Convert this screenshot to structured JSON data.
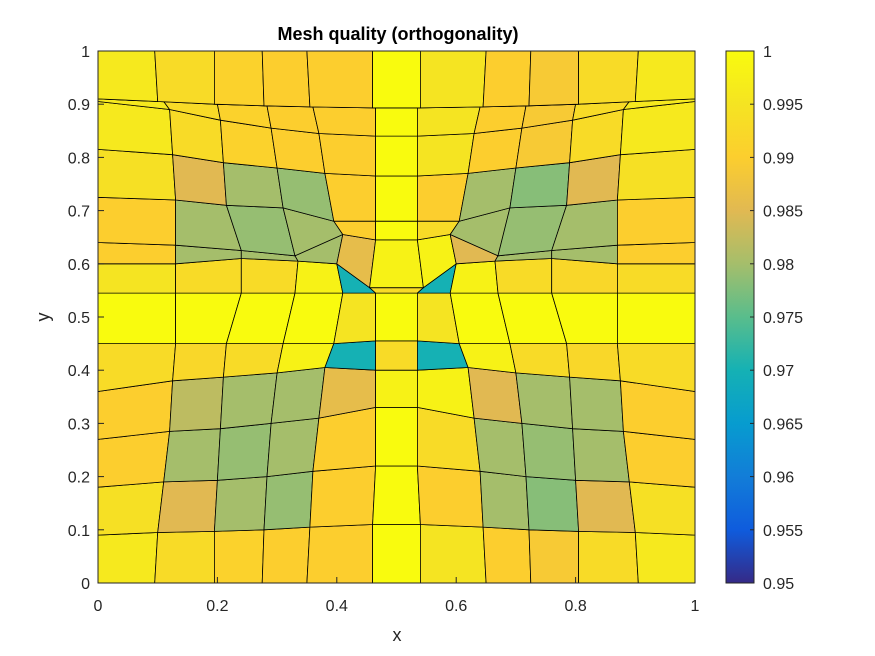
{
  "chart_data": {
    "type": "heatmap",
    "title": "Mesh quality (orthogonality)",
    "xlabel": "x",
    "ylabel": "y",
    "xlim": [
      0,
      1
    ],
    "ylim": [
      0,
      1
    ],
    "xticks": [
      "0",
      "0.2",
      "0.4",
      "0.6",
      "0.8",
      "1"
    ],
    "yticks": [
      "0",
      "0.1",
      "0.2",
      "0.3",
      "0.4",
      "0.5",
      "0.6",
      "0.7",
      "0.8",
      "0.9",
      "1"
    ],
    "grid": false,
    "colorbar": {
      "range": [
        0.95,
        1
      ],
      "colormap": "parula",
      "ticks": [
        "0.95",
        "0.955",
        "0.96",
        "0.965",
        "0.97",
        "0.975",
        "0.98",
        "0.985",
        "0.99",
        "0.995",
        "1"
      ]
    },
    "mesh": {
      "x_nodes": [
        [
          0,
          0.095,
          0.195,
          0.275,
          0.35,
          0.46,
          0.54,
          0.65,
          0.725,
          0.805,
          0.905,
          1
        ],
        [
          0,
          0.1,
          0.195,
          0.278,
          0.355,
          0.46,
          0.54,
          0.645,
          0.722,
          0.805,
          0.9,
          1
        ],
        [
          0,
          0.11,
          0.2,
          0.283,
          0.36,
          0.465,
          0.535,
          0.64,
          0.717,
          0.8,
          0.89,
          1
        ],
        [
          0,
          0.12,
          0.205,
          0.29,
          0.37,
          0.465,
          0.535,
          0.63,
          0.71,
          0.795,
          0.88,
          1
        ],
        [
          0,
          0.125,
          0.21,
          0.3,
          0.38,
          0.465,
          0.535,
          0.62,
          0.7,
          0.79,
          0.875,
          1
        ],
        [
          0,
          0.13,
          0.215,
          0.31,
          0.395,
          0.465,
          0.535,
          0.605,
          0.69,
          0.785,
          0.87,
          1
        ],
        [
          0,
          0.13,
          0.24,
          0.33,
          0.41,
          0.465,
          0.535,
          0.59,
          0.67,
          0.76,
          0.87,
          1
        ],
        [
          0,
          0.13,
          0.24,
          0.335,
          0.4,
          0.455,
          0.545,
          0.6,
          0.665,
          0.76,
          0.87,
          1
        ],
        [
          0,
          0.13,
          0.24,
          0.33,
          0.41,
          0.465,
          0.535,
          0.59,
          0.67,
          0.76,
          0.87,
          1
        ],
        [
          0,
          0.13,
          0.215,
          0.31,
          0.395,
          0.465,
          0.535,
          0.605,
          0.69,
          0.785,
          0.87,
          1
        ],
        [
          0,
          0.125,
          0.21,
          0.3,
          0.38,
          0.465,
          0.535,
          0.62,
          0.7,
          0.79,
          0.875,
          1
        ],
        [
          0,
          0.12,
          0.205,
          0.29,
          0.37,
          0.465,
          0.535,
          0.63,
          0.71,
          0.795,
          0.88,
          1
        ],
        [
          0,
          0.11,
          0.2,
          0.283,
          0.36,
          0.465,
          0.535,
          0.64,
          0.717,
          0.8,
          0.89,
          1
        ],
        [
          0,
          0.1,
          0.195,
          0.278,
          0.355,
          0.46,
          0.54,
          0.645,
          0.722,
          0.805,
          0.9,
          1
        ],
        [
          0,
          0.095,
          0.195,
          0.275,
          0.35,
          0.46,
          0.54,
          0.65,
          0.725,
          0.805,
          0.905,
          1
        ]
      ],
      "y_nodes": [
        [
          0,
          0,
          0,
          0,
          0,
          0,
          0,
          0,
          0,
          0,
          0,
          0
        ],
        [
          0.09,
          0.095,
          0.097,
          0.1,
          0.105,
          0.11,
          0.11,
          0.105,
          0.1,
          0.097,
          0.095,
          0.09
        ],
        [
          0.18,
          0.19,
          0.193,
          0.2,
          0.21,
          0.22,
          0.22,
          0.21,
          0.2,
          0.193,
          0.19,
          0.18
        ],
        [
          0.27,
          0.285,
          0.29,
          0.3,
          0.31,
          0.33,
          0.33,
          0.31,
          0.3,
          0.29,
          0.285,
          0.27
        ],
        [
          0.36,
          0.38,
          0.387,
          0.395,
          0.405,
          0.4,
          0.4,
          0.405,
          0.395,
          0.387,
          0.38,
          0.36
        ],
        [
          0.45,
          0.45,
          0.45,
          0.45,
          0.45,
          0.455,
          0.455,
          0.45,
          0.45,
          0.45,
          0.45,
          0.45
        ],
        [
          0.545,
          0.545,
          0.545,
          0.545,
          0.545,
          0.545,
          0.545,
          0.545,
          0.545,
          0.545,
          0.545,
          0.545
        ],
        [
          0.6,
          0.6,
          0.61,
          0.605,
          0.6,
          0.555,
          0.555,
          0.6,
          0.605,
          0.61,
          0.6,
          0.6
        ],
        [
          0.64,
          0.635,
          0.625,
          0.615,
          0.655,
          0.645,
          0.645,
          0.655,
          0.615,
          0.625,
          0.635,
          0.64
        ],
        [
          0.725,
          0.72,
          0.71,
          0.705,
          0.68,
          0.68,
          0.68,
          0.68,
          0.705,
          0.71,
          0.72,
          0.725
        ],
        [
          0.815,
          0.805,
          0.79,
          0.78,
          0.77,
          0.765,
          0.765,
          0.77,
          0.78,
          0.79,
          0.805,
          0.815
        ],
        [
          0.905,
          0.89,
          0.87,
          0.855,
          0.845,
          0.84,
          0.84,
          0.845,
          0.855,
          0.87,
          0.89,
          0.905
        ],
        [
          0.91,
          0.905,
          0.9,
          0.897,
          0.895,
          0.893,
          0.893,
          0.895,
          0.897,
          0.9,
          0.905,
          0.91
        ],
        [
          0.91,
          0.905,
          0.9,
          0.897,
          0.895,
          0.893,
          0.893,
          0.895,
          0.897,
          0.9,
          0.905,
          0.91
        ],
        [
          1,
          1,
          1,
          1,
          1,
          1,
          1,
          1,
          1,
          1,
          1,
          1
        ]
      ],
      "values": [
        [
          0.996,
          0.993,
          0.991,
          0.99,
          0.99,
          1.0,
          0.995,
          0.99,
          0.989,
          0.993,
          0.996
        ],
        [
          0.994,
          0.985,
          0.98,
          0.979,
          0.99,
          1.0,
          0.99,
          0.98,
          0.978,
          0.985,
          0.994
        ],
        [
          0.99,
          0.98,
          0.979,
          0.98,
          0.99,
          1.0,
          0.993,
          0.98,
          0.979,
          0.98,
          0.99
        ],
        [
          0.99,
          0.982,
          0.98,
          0.98,
          0.986,
          0.998,
          0.998,
          0.985,
          0.98,
          0.98,
          0.99
        ],
        [
          0.993,
          0.992,
          0.993,
          0.998,
          0.97,
          0.993,
          0.97,
          0.998,
          0.993,
          0.992,
          0.993
        ],
        [
          1.0,
          1.0,
          1.0,
          1.0,
          0.995,
          1.0,
          0.995,
          1.0,
          1.0,
          1.0,
          1.0
        ],
        [
          0.995,
          0.993,
          0.993,
          0.998,
          0.97,
          0.993,
          0.97,
          0.998,
          0.993,
          0.992,
          0.993
        ],
        [
          0.99,
          0.98,
          0.98,
          0.98,
          0.986,
          0.998,
          0.998,
          0.985,
          0.98,
          0.98,
          0.99
        ],
        [
          0.99,
          0.98,
          0.979,
          0.98,
          0.99,
          1.0,
          0.993,
          0.98,
          0.979,
          0.98,
          0.99
        ],
        [
          0.994,
          0.985,
          0.98,
          0.979,
          0.99,
          1.0,
          0.99,
          0.98,
          0.978,
          0.985,
          0.994
        ],
        [
          0.996,
          0.993,
          0.991,
          0.99,
          0.99,
          1.0,
          0.995,
          0.99,
          0.989,
          0.993,
          0.996
        ]
      ]
    }
  }
}
